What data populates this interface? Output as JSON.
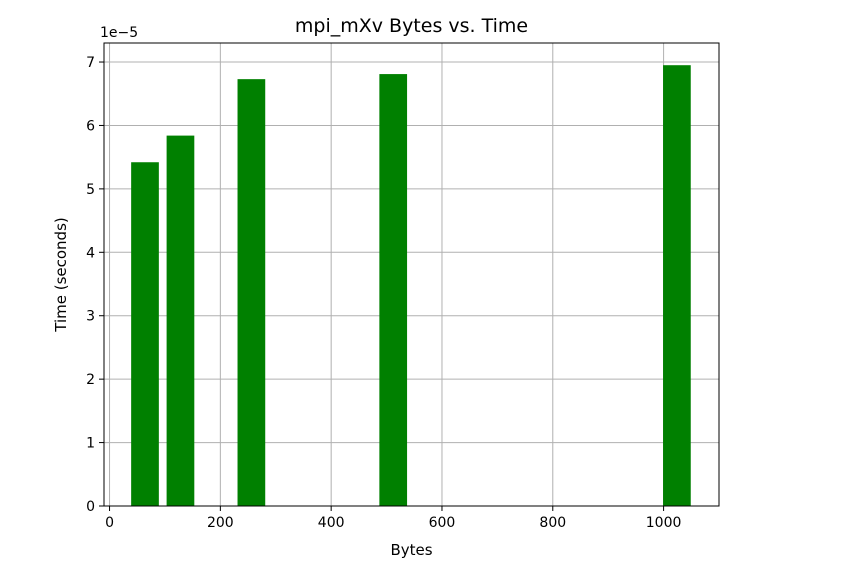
{
  "chart_data": {
    "type": "bar",
    "title": "mpi_mXv Bytes vs. Time",
    "xlabel": "Bytes",
    "ylabel": "Time (seconds)",
    "y_offset_label": "1e−5",
    "y_scale": 1e-05,
    "x": [
      64,
      128,
      256,
      512,
      1024
    ],
    "values": [
      5.42e-05,
      5.84e-05,
      6.73e-05,
      6.81e-05,
      6.95e-05
    ],
    "bar_width": 50,
    "xlim": [
      -10,
      1100
    ],
    "ylim": [
      0,
      7.3e-05
    ],
    "xticks": [
      0,
      200,
      400,
      600,
      800,
      1000
    ],
    "xtick_labels": [
      "0",
      "200",
      "400",
      "600",
      "800",
      "1000"
    ],
    "yticks": [
      0,
      1,
      2,
      3,
      4,
      5,
      6,
      7
    ],
    "ytick_labels": [
      "0",
      "1",
      "2",
      "3",
      "4",
      "5",
      "6",
      "7"
    ],
    "grid": true,
    "bar_color": "#008000"
  }
}
